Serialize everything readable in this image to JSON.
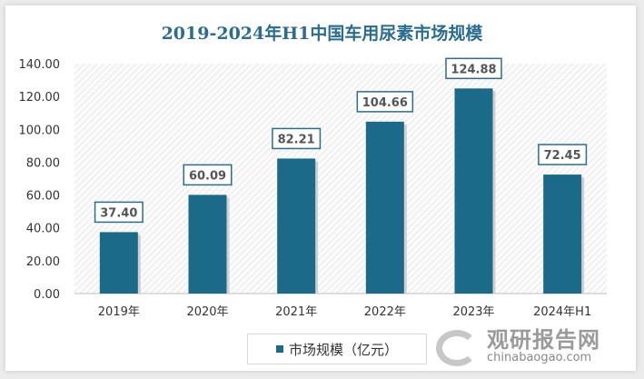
{
  "chart_data": {
    "type": "bar",
    "title": "2019-2024年H1中国车用尿素市场规模",
    "categories": [
      "2019年",
      "2020年",
      "2021年",
      "2022年",
      "2023年",
      "2024年H1"
    ],
    "series": [
      {
        "name": "市场规模（亿元）",
        "values": [
          37.4,
          60.09,
          82.21,
          104.66,
          124.88,
          72.45
        ]
      }
    ],
    "data_labels": [
      "37.40",
      "60.09",
      "82.21",
      "104.66",
      "124.88",
      "72.45"
    ],
    "ylim": [
      0,
      140
    ],
    "yticks": [
      "0.00",
      "20.00",
      "40.00",
      "60.00",
      "80.00",
      "100.00",
      "120.00",
      "140.00"
    ],
    "grid": false,
    "legend": "bottom",
    "colors": {
      "bar": "#1c6a8a",
      "title": "#2a6d8e",
      "label_border": "#2a6d8e"
    }
  },
  "watermark": {
    "cn": "观研报告网",
    "en": "chinabaogao.com"
  }
}
